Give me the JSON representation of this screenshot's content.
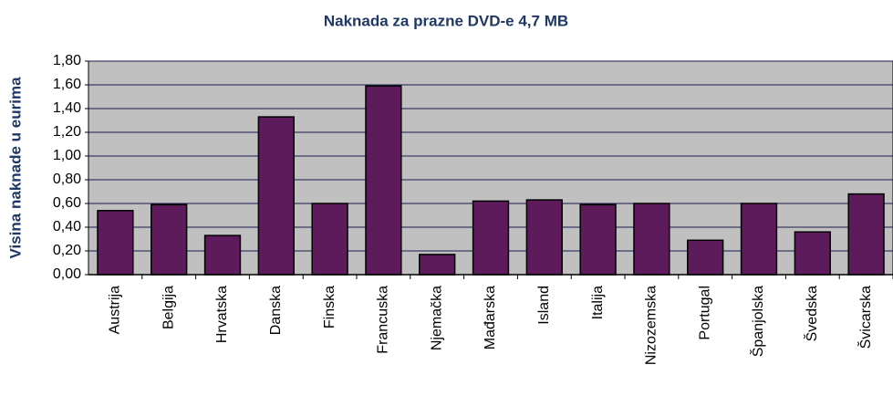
{
  "chart_data": {
    "type": "bar",
    "title": "Naknada za prazne DVD-e 4,7 MB",
    "ylabel": "Visina naknade u eurima",
    "categories": [
      "Austrija",
      "Belgija",
      "Hrvatska",
      "Danska",
      "Finska",
      "Francuska",
      "Njemačka",
      "Mađarska",
      "Island",
      "Italija",
      "Nizozemska",
      "Portugal",
      "Španjolska",
      "Švedska",
      "Švicarska"
    ],
    "values": [
      0.54,
      0.59,
      0.33,
      1.33,
      0.6,
      1.59,
      0.17,
      0.62,
      0.63,
      0.59,
      0.6,
      0.29,
      0.6,
      0.36,
      0.68
    ],
    "color": "#5e1b5c",
    "ylim": [
      0,
      1.8
    ],
    "yticks": [
      {
        "value": 0,
        "label": "0,00"
      },
      {
        "value": 0.2,
        "label": "0,20"
      },
      {
        "value": 0.4,
        "label": "0,40"
      },
      {
        "value": 0.6,
        "label": "0,60"
      },
      {
        "value": 0.8,
        "label": "0,80"
      },
      {
        "value": 1.0,
        "label": "1,00"
      },
      {
        "value": 1.2,
        "label": "1,20"
      },
      {
        "value": 1.4,
        "label": "1,40"
      },
      {
        "value": 1.6,
        "label": "1,60"
      },
      {
        "value": 1.8,
        "label": "1,80"
      }
    ],
    "grid": true
  }
}
